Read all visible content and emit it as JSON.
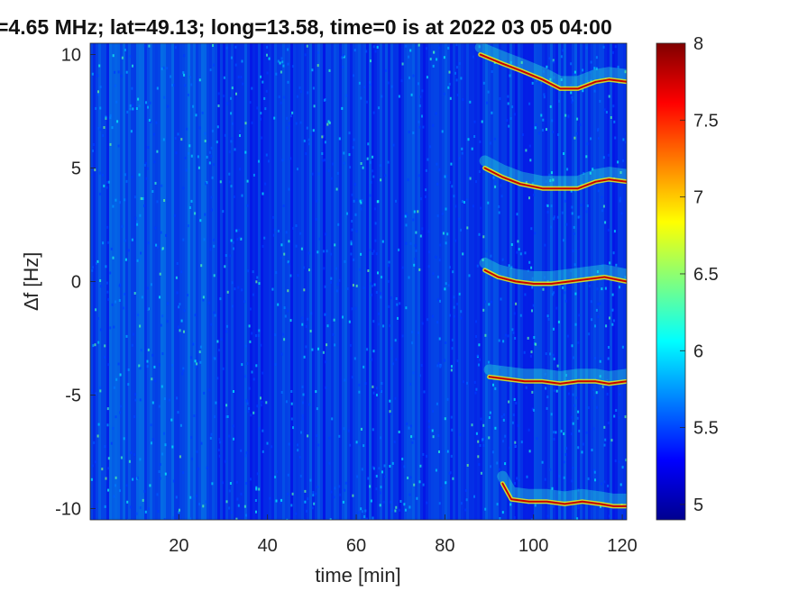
{
  "chart_data": {
    "type": "heatmap",
    "title": "=4.65 MHz;  lat=49.13; long=13.58, time=0 is at 2022 03 05 04:00",
    "xlabel": "time [min]",
    "ylabel": "∆f [Hz]",
    "xlim": [
      0,
      121
    ],
    "ylim": [
      -10.5,
      10.5
    ],
    "x_ticks": [
      20,
      40,
      60,
      80,
      100,
      120
    ],
    "x_tick_labels": [
      "20",
      "40",
      "60",
      "80",
      "100",
      "120"
    ],
    "y_ticks": [
      10,
      5,
      0,
      -5,
      -10
    ],
    "y_tick_labels": [
      "10",
      "5",
      "0",
      "-5",
      "-10"
    ],
    "colorbar": {
      "min": 4.9,
      "max": 8,
      "ticks": [
        8,
        7.5,
        7,
        6.5,
        6,
        5.5,
        5
      ],
      "tick_labels": [
        "8",
        "7.5",
        "7",
        "6.5",
        "6",
        "5.5",
        "5"
      ],
      "colormap": "jet"
    },
    "background_level": 5.1,
    "doppler_traces": [
      {
        "offset_hz": 10,
        "points": [
          [
            88,
            10.0
          ],
          [
            93,
            9.6
          ],
          [
            97,
            9.3
          ],
          [
            102,
            8.9
          ],
          [
            106,
            8.5
          ],
          [
            110,
            8.5
          ],
          [
            114,
            8.8
          ],
          [
            117,
            8.9
          ],
          [
            121,
            8.8
          ]
        ]
      },
      {
        "offset_hz": 5,
        "points": [
          [
            89,
            5.0
          ],
          [
            93,
            4.6
          ],
          [
            97,
            4.3
          ],
          [
            102,
            4.1
          ],
          [
            106,
            4.1
          ],
          [
            110,
            4.1
          ],
          [
            114,
            4.4
          ],
          [
            117,
            4.5
          ],
          [
            121,
            4.4
          ]
        ]
      },
      {
        "offset_hz": 0,
        "points": [
          [
            89,
            0.5
          ],
          [
            92,
            0.2
          ],
          [
            96,
            0.0
          ],
          [
            100,
            -0.1
          ],
          [
            104,
            -0.1
          ],
          [
            108,
            0.0
          ],
          [
            112,
            0.1
          ],
          [
            116,
            0.2
          ],
          [
            121,
            0.0
          ]
        ]
      },
      {
        "offset_hz": -5,
        "points": [
          [
            90,
            -4.2
          ],
          [
            94,
            -4.3
          ],
          [
            98,
            -4.4
          ],
          [
            102,
            -4.4
          ],
          [
            106,
            -4.5
          ],
          [
            110,
            -4.4
          ],
          [
            114,
            -4.4
          ],
          [
            117,
            -4.5
          ],
          [
            121,
            -4.4
          ]
        ]
      },
      {
        "offset_hz": -10,
        "points": [
          [
            93,
            -8.9
          ],
          [
            95,
            -9.6
          ],
          [
            99,
            -9.7
          ],
          [
            103,
            -9.7
          ],
          [
            107,
            -9.8
          ],
          [
            111,
            -9.7
          ],
          [
            115,
            -9.8
          ],
          [
            118,
            -9.9
          ],
          [
            121,
            -9.9
          ]
        ]
      }
    ],
    "grid": false,
    "legend": "none"
  }
}
